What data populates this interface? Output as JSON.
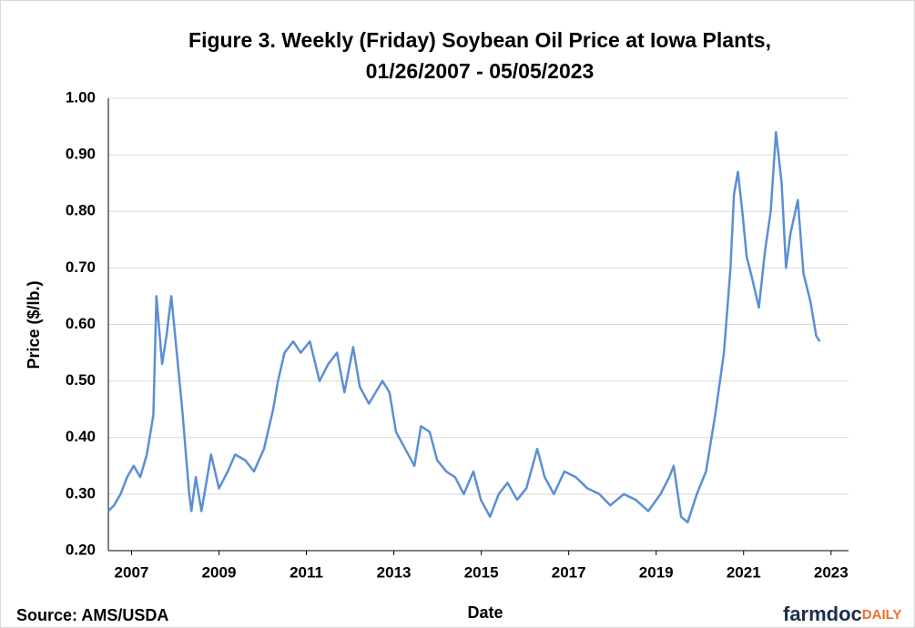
{
  "chart_data": {
    "type": "line",
    "title": "Figure 3. Weekly (Friday) Soybean Oil Price at Iowa Plants,",
    "subtitle": "01/26/2007 - 05/05/2023",
    "x_label": "Date",
    "y_label": "Price ($/lb.)",
    "source": "Source: AMS/USDA",
    "logo": {
      "main": "farmdoc",
      "accent": "DAILY"
    },
    "xlim": [
      2007.07,
      2024.0
    ],
    "xticks": [
      {
        "value": 2007.6,
        "label": "2007"
      },
      {
        "value": 2009.6,
        "label": "2009"
      },
      {
        "value": 2011.6,
        "label": "2011"
      },
      {
        "value": 2013.6,
        "label": "2013"
      },
      {
        "value": 2015.6,
        "label": "2015"
      },
      {
        "value": 2017.6,
        "label": "2017"
      },
      {
        "value": 2019.6,
        "label": "2019"
      },
      {
        "value": 2021.6,
        "label": "2021"
      },
      {
        "value": 2023.6,
        "label": "2023"
      }
    ],
    "ylim": [
      0.2,
      1.0
    ],
    "yticks": [
      {
        "value": 0.2,
        "label": "0.20"
      },
      {
        "value": 0.3,
        "label": "0.30"
      },
      {
        "value": 0.4,
        "label": "0.40"
      },
      {
        "value": 0.5,
        "label": "0.50"
      },
      {
        "value": 0.6,
        "label": "0.60"
      },
      {
        "value": 0.7,
        "label": "0.70"
      },
      {
        "value": 0.8,
        "label": "0.80"
      },
      {
        "value": 0.9,
        "label": "0.90"
      },
      {
        "value": 1.0,
        "label": "1.00"
      }
    ],
    "grid": true,
    "x": [
      2007.07,
      2007.2,
      2007.35,
      2007.5,
      2007.65,
      2007.8,
      2007.95,
      2008.1,
      2008.17,
      2008.3,
      2008.4,
      2008.51,
      2008.76,
      2008.92,
      2008.97,
      2009.07,
      2009.2,
      2009.42,
      2009.6,
      2009.8,
      2009.97,
      2010.2,
      2010.4,
      2010.63,
      2010.84,
      2010.95,
      2011.1,
      2011.3,
      2011.47,
      2011.68,
      2011.9,
      2012.1,
      2012.3,
      2012.47,
      2012.67,
      2012.82,
      2013.03,
      2013.34,
      2013.5,
      2013.65,
      2013.86,
      2014.07,
      2014.22,
      2014.42,
      2014.59,
      2014.8,
      2015.0,
      2015.2,
      2015.42,
      2015.59,
      2015.8,
      2016.0,
      2016.2,
      2016.42,
      2016.63,
      2016.88,
      2017.05,
      2017.26,
      2017.5,
      2017.76,
      2018.03,
      2018.3,
      2018.55,
      2018.86,
      2019.13,
      2019.42,
      2019.7,
      2019.9,
      2020.0,
      2020.17,
      2020.32,
      2020.53,
      2020.74,
      2020.95,
      2021.15,
      2021.3,
      2021.38,
      2021.47,
      2021.57,
      2021.67,
      2021.8,
      2021.95,
      2022.09,
      2022.22,
      2022.34,
      2022.47,
      2022.57,
      2022.67,
      2022.84,
      2022.97,
      2023.13,
      2023.26,
      2023.34
    ],
    "series": [
      {
        "name": "Price",
        "color": "#5b8fd3",
        "values": [
          0.27,
          0.28,
          0.3,
          0.33,
          0.35,
          0.33,
          0.37,
          0.44,
          0.65,
          0.53,
          0.58,
          0.65,
          0.45,
          0.3,
          0.27,
          0.33,
          0.27,
          0.37,
          0.31,
          0.34,
          0.37,
          0.36,
          0.34,
          0.38,
          0.45,
          0.5,
          0.55,
          0.57,
          0.55,
          0.57,
          0.5,
          0.53,
          0.55,
          0.48,
          0.56,
          0.49,
          0.46,
          0.5,
          0.48,
          0.41,
          0.38,
          0.35,
          0.42,
          0.41,
          0.36,
          0.34,
          0.33,
          0.3,
          0.34,
          0.29,
          0.26,
          0.3,
          0.32,
          0.29,
          0.31,
          0.38,
          0.33,
          0.3,
          0.34,
          0.33,
          0.31,
          0.3,
          0.28,
          0.3,
          0.29,
          0.27,
          0.3,
          0.33,
          0.35,
          0.26,
          0.25,
          0.3,
          0.34,
          0.44,
          0.55,
          0.7,
          0.83,
          0.87,
          0.8,
          0.72,
          0.68,
          0.63,
          0.73,
          0.8,
          0.94,
          0.85,
          0.7,
          0.76,
          0.82,
          0.69,
          0.64,
          0.58,
          0.57
        ]
      }
    ]
  }
}
